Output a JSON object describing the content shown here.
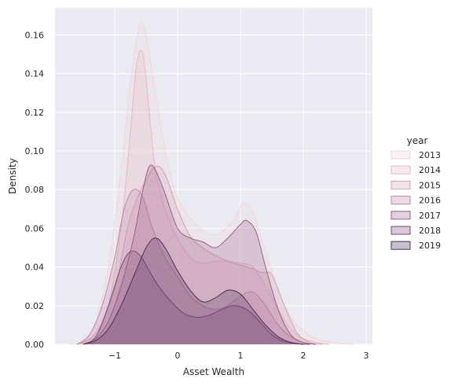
{
  "chart_data": {
    "type": "area",
    "xlabel": "Asset Wealth",
    "ylabel": "Density",
    "xlim": [
      -1.95,
      3.1
    ],
    "ylim": [
      0,
      0.174
    ],
    "xticks": [
      -1,
      0,
      1,
      2,
      3
    ],
    "xtick_labels": [
      "−1",
      "0",
      "1",
      "2",
      "3"
    ],
    "yticks": [
      0.0,
      0.02,
      0.04,
      0.06,
      0.08,
      0.1,
      0.12,
      0.14,
      0.16
    ],
    "ytick_labels": [
      "0.00",
      "0.02",
      "0.04",
      "0.06",
      "0.08",
      "0.10",
      "0.12",
      "0.14",
      "0.16"
    ],
    "grid": true,
    "legend": {
      "title": "year",
      "position": "right"
    },
    "series": [
      {
        "name": "2013",
        "color": "#f0d6d6",
        "x": [
          -1.7,
          -1.5,
          -1.3,
          -1.1,
          -0.9,
          -0.75,
          -0.6,
          -0.5,
          -0.4,
          -0.25,
          -0.1,
          0.1,
          0.3,
          0.5,
          0.7,
          0.9,
          1.05,
          1.2,
          1.4,
          1.6,
          1.8,
          2.0,
          2.2,
          2.4,
          2.6,
          2.8
        ],
        "y": [
          0.0,
          0.002,
          0.012,
          0.04,
          0.09,
          0.135,
          0.165,
          0.16,
          0.14,
          0.11,
          0.085,
          0.07,
          0.062,
          0.057,
          0.058,
          0.065,
          0.073,
          0.068,
          0.048,
          0.028,
          0.014,
          0.007,
          0.003,
          0.0015,
          0.0005,
          0.0
        ]
      },
      {
        "name": "2014",
        "color": "#e6b8c0",
        "x": [
          -1.6,
          -1.3,
          -1.1,
          -0.9,
          -0.75,
          -0.65,
          -0.55,
          -0.45,
          -0.35,
          -0.2,
          0.0,
          0.2,
          0.4,
          0.6,
          0.8,
          1.0,
          1.2,
          1.4,
          1.6,
          1.8,
          2.0,
          2.2,
          2.4
        ],
        "y": [
          0.0,
          0.004,
          0.02,
          0.06,
          0.11,
          0.145,
          0.15,
          0.12,
          0.09,
          0.07,
          0.055,
          0.045,
          0.042,
          0.043,
          0.043,
          0.042,
          0.04,
          0.03,
          0.018,
          0.008,
          0.003,
          0.001,
          0.0
        ]
      },
      {
        "name": "2015",
        "color": "#d4a0b4",
        "x": [
          -1.6,
          -1.35,
          -1.15,
          -0.95,
          -0.8,
          -0.65,
          -0.5,
          -0.35,
          -0.2,
          0.0,
          0.2,
          0.4,
          0.6,
          0.8,
          1.0,
          1.2,
          1.35,
          1.5,
          1.7,
          1.9,
          2.1,
          2.3
        ],
        "y": [
          0.0,
          0.004,
          0.015,
          0.035,
          0.06,
          0.075,
          0.085,
          0.092,
          0.088,
          0.07,
          0.056,
          0.05,
          0.046,
          0.043,
          0.041,
          0.039,
          0.037,
          0.036,
          0.02,
          0.006,
          0.001,
          0.0
        ]
      },
      {
        "name": "2016",
        "color": "#c087ab",
        "x": [
          -1.6,
          -1.4,
          -1.2,
          -1.0,
          -0.85,
          -0.7,
          -0.55,
          -0.4,
          -0.2,
          0.0,
          0.2,
          0.4,
          0.6,
          0.8,
          1.0,
          1.2,
          1.4,
          1.6,
          1.8,
          2.0,
          2.2
        ],
        "y": [
          0.0,
          0.005,
          0.02,
          0.045,
          0.07,
          0.08,
          0.076,
          0.06,
          0.045,
          0.035,
          0.025,
          0.02,
          0.018,
          0.02,
          0.025,
          0.027,
          0.02,
          0.01,
          0.004,
          0.001,
          0.0
        ]
      },
      {
        "name": "2017",
        "color": "#9a5f8c",
        "x": [
          -1.5,
          -1.3,
          -1.1,
          -0.9,
          -0.7,
          -0.55,
          -0.45,
          -0.35,
          -0.2,
          0.0,
          0.2,
          0.4,
          0.6,
          0.8,
          1.0,
          1.1,
          1.25,
          1.4,
          1.6,
          1.8,
          2.0,
          2.2
        ],
        "y": [
          0.0,
          0.003,
          0.012,
          0.03,
          0.055,
          0.08,
          0.092,
          0.09,
          0.078,
          0.06,
          0.055,
          0.053,
          0.05,
          0.055,
          0.062,
          0.064,
          0.058,
          0.04,
          0.018,
          0.005,
          0.001,
          0.0
        ]
      },
      {
        "name": "2018",
        "color": "#7d4a78",
        "x": [
          -1.5,
          -1.3,
          -1.1,
          -0.9,
          -0.75,
          -0.6,
          -0.45,
          -0.3,
          -0.1,
          0.1,
          0.3,
          0.5,
          0.7,
          0.9,
          1.1,
          1.3,
          1.5,
          1.7,
          1.9,
          2.1
        ],
        "y": [
          0.0,
          0.004,
          0.02,
          0.04,
          0.048,
          0.046,
          0.038,
          0.03,
          0.022,
          0.016,
          0.014,
          0.015,
          0.018,
          0.02,
          0.018,
          0.012,
          0.005,
          0.0015,
          0.0003,
          0.0
        ]
      },
      {
        "name": "2019",
        "color": "#4b2e5a",
        "x": [
          -1.5,
          -1.3,
          -1.1,
          -0.9,
          -0.7,
          -0.5,
          -0.35,
          -0.2,
          0.0,
          0.2,
          0.4,
          0.6,
          0.8,
          1.0,
          1.2,
          1.4,
          1.6,
          1.8,
          2.0
        ],
        "y": [
          0.0,
          0.002,
          0.008,
          0.02,
          0.035,
          0.05,
          0.055,
          0.05,
          0.038,
          0.028,
          0.022,
          0.024,
          0.028,
          0.026,
          0.018,
          0.01,
          0.004,
          0.001,
          0.0
        ]
      }
    ]
  }
}
